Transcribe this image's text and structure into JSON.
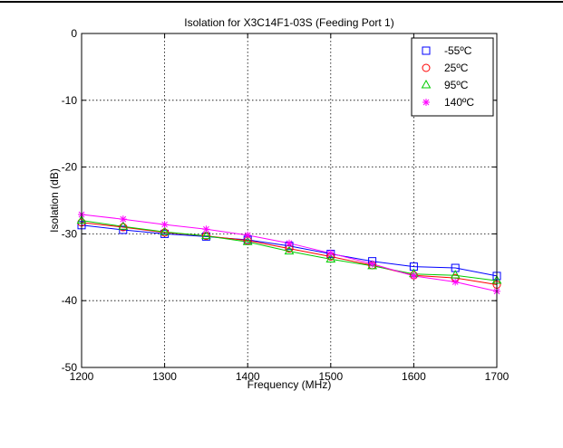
{
  "chart_data": {
    "type": "line",
    "title": "Isolation for X3C14F1-03S (Feeding Port 1)",
    "xlabel": "Frequency (MHz)",
    "ylabel": "Isolation (dB)",
    "xlim": [
      1200,
      1700
    ],
    "ylim": [
      -50,
      0
    ],
    "xticks": [
      1200,
      1300,
      1400,
      1500,
      1600,
      1700
    ],
    "yticks": [
      0,
      -10,
      -20,
      -30,
      -40,
      -50
    ],
    "grid": true,
    "legend_position": "top-right",
    "x": [
      1200,
      1250,
      1300,
      1350,
      1400,
      1450,
      1500,
      1550,
      1600,
      1650,
      1700
    ],
    "series": [
      {
        "name": "-55ºC",
        "color": "#0000ff",
        "marker": "square",
        "values": [
          -28.7,
          -29.4,
          -30.0,
          -30.4,
          -30.9,
          -31.8,
          -33.0,
          -34.1,
          -34.9,
          -35.1,
          -36.3
        ]
      },
      {
        "name": "25ºC",
        "color": "#ff0000",
        "marker": "circle",
        "values": [
          -28.3,
          -29.0,
          -29.8,
          -30.3,
          -31.0,
          -32.2,
          -33.4,
          -34.7,
          -36.2,
          -36.6,
          -37.6
        ]
      },
      {
        "name": "95ºC",
        "color": "#00cc00",
        "marker": "triangle",
        "values": [
          -28.0,
          -28.9,
          -29.7,
          -30.3,
          -31.2,
          -32.6,
          -33.8,
          -34.8,
          -36.0,
          -36.2,
          -37.0
        ]
      },
      {
        "name": "140ºC",
        "color": "#ff00ff",
        "marker": "star",
        "values": [
          -27.1,
          -27.8,
          -28.6,
          -29.3,
          -30.2,
          -31.4,
          -32.9,
          -34.5,
          -36.3,
          -37.2,
          -38.6
        ]
      }
    ]
  }
}
